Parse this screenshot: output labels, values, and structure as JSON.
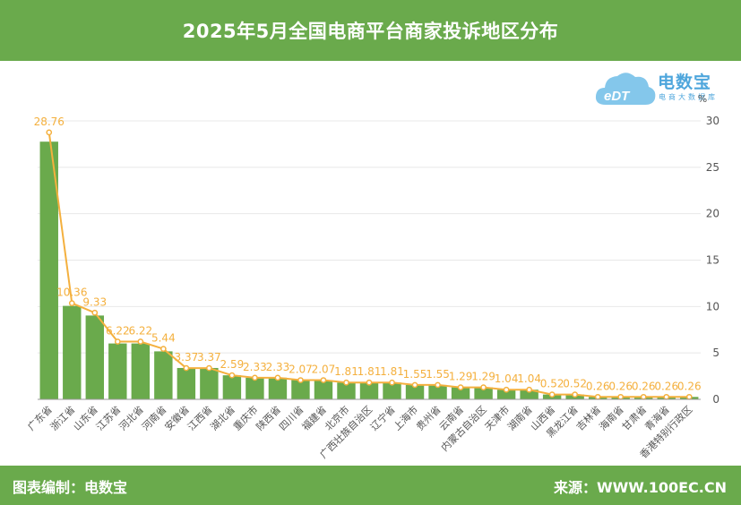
{
  "header": {
    "title": "2025年5月全国电商平台商家投诉地区分布"
  },
  "footer": {
    "left": "图表编制：电数宝",
    "right": "来源：WWW.100EC.CN"
  },
  "logo": {
    "name": "电数宝",
    "slogan": "电商大数据库",
    "badge": "eDT",
    "icon": "cloud-icon",
    "color": "#4ea6dc"
  },
  "colors": {
    "bar": "#6aaa4c",
    "line": "#f4b03e",
    "label": "#f4b03e",
    "axis": "#555555",
    "grid": "#e8e8e8"
  },
  "chart_data": {
    "type": "bar",
    "title": "",
    "xlabel": "",
    "ylabel": "%",
    "ylim": [
      0,
      30
    ],
    "yticks": [
      0,
      5,
      10,
      15,
      20,
      25,
      30
    ],
    "grid": true,
    "categories": [
      "广东省",
      "浙江省",
      "山东省",
      "江苏省",
      "河北省",
      "河南省",
      "安徽省",
      "江西省",
      "湖北省",
      "重庆市",
      "陕西省",
      "四川省",
      "福建省",
      "北京市",
      "广西壮族自治区",
      "辽宁省",
      "上海市",
      "贵州省",
      "云南省",
      "内蒙古自治区",
      "天津市",
      "湖南省",
      "山西省",
      "黑龙江省",
      "吉林省",
      "海南省",
      "甘肃省",
      "青海省",
      "香港特别行政区"
    ],
    "series": [
      {
        "type": "bar",
        "values": [
          27.76,
          10.07,
          9.03,
          6.02,
          6.02,
          5.17,
          3.38,
          3.38,
          2.59,
          2.33,
          2.33,
          2.07,
          2.07,
          1.81,
          1.81,
          1.81,
          1.55,
          1.55,
          1.29,
          1.29,
          1.04,
          1.04,
          0.52,
          0.52,
          0.26,
          0.26,
          0.26,
          0.26,
          0.26
        ]
      },
      {
        "type": "line",
        "values": [
          28.76,
          10.36,
          9.33,
          6.22,
          6.22,
          5.44,
          3.37,
          3.37,
          2.59,
          2.33,
          2.33,
          2.07,
          2.07,
          1.81,
          1.81,
          1.81,
          1.55,
          1.55,
          1.29,
          1.29,
          1.04,
          1.04,
          0.52,
          0.52,
          0.26,
          0.26,
          0.26,
          0.26,
          0.26
        ]
      }
    ]
  }
}
